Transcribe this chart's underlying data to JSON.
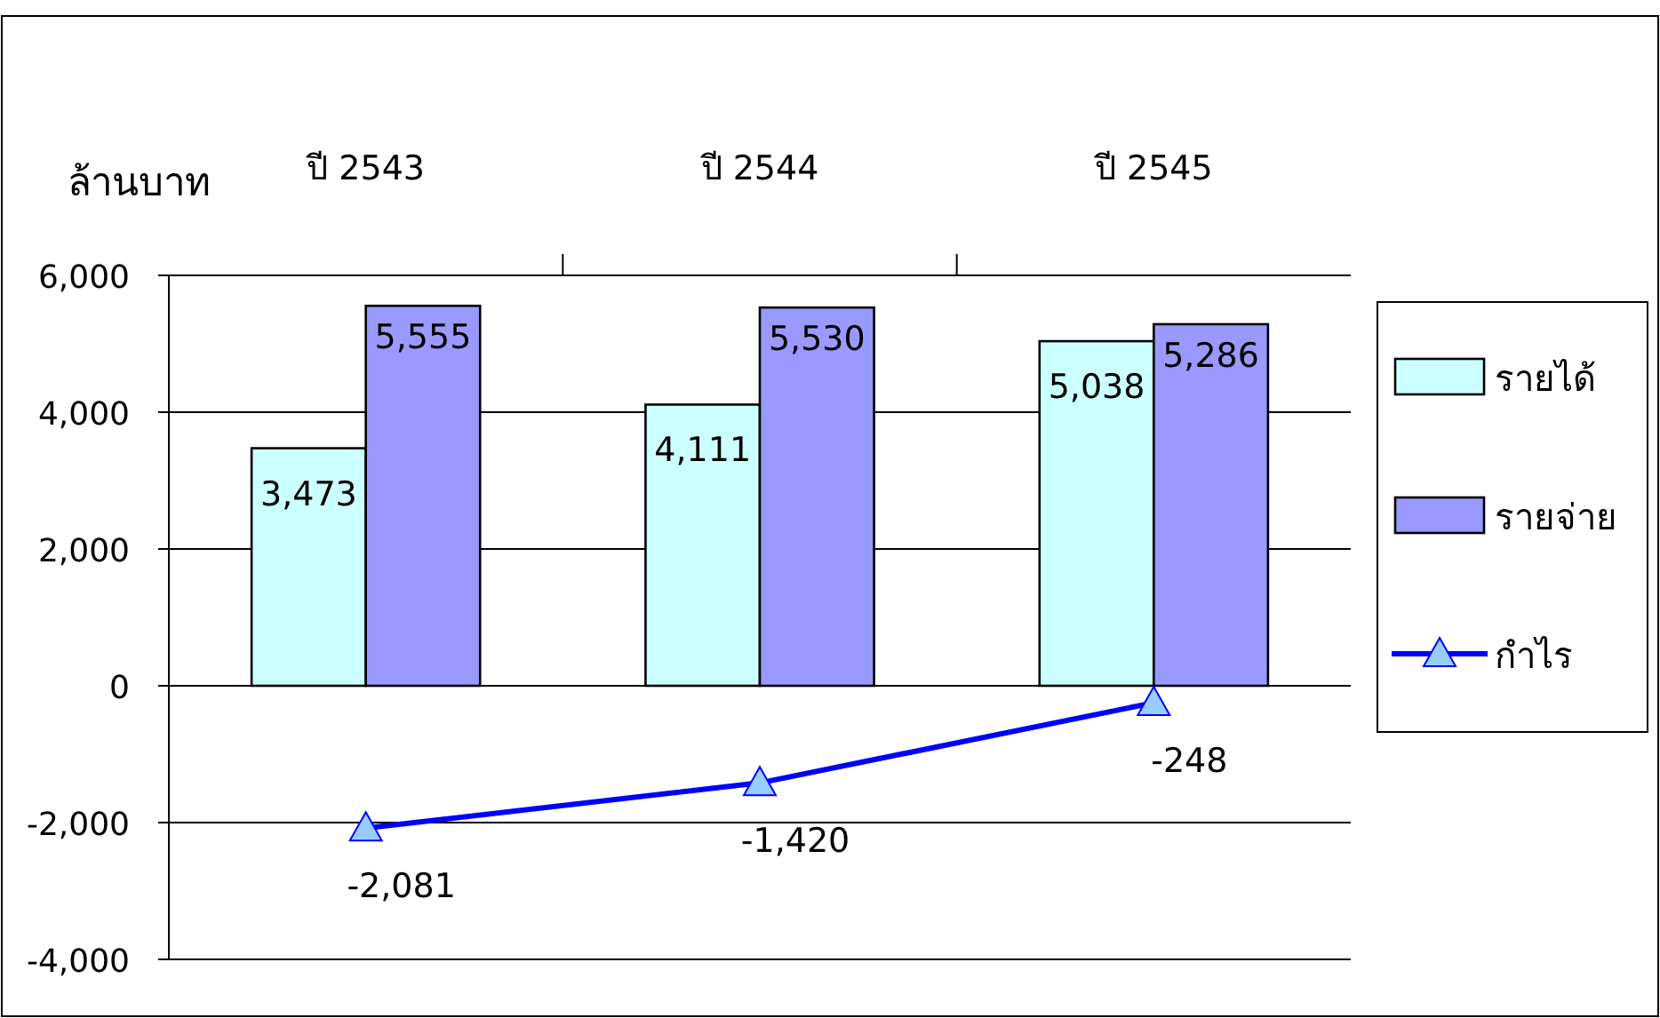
{
  "chart_data": {
    "type": "bar",
    "ylabel": "ล้านบาท",
    "categories": [
      "ปี 2543",
      "ปี 2544",
      "ปี 2545"
    ],
    "ylim": [
      -4000,
      6000
    ],
    "yticks": [
      {
        "value": -4000,
        "label": "-4,000"
      },
      {
        "value": -2000,
        "label": "-2,000"
      },
      {
        "value": 0,
        "label": "0"
      },
      {
        "value": 2000,
        "label": "2,000"
      },
      {
        "value": 4000,
        "label": "4,000"
      },
      {
        "value": 6000,
        "label": "6,000"
      }
    ],
    "grid": "y",
    "legend": "right",
    "series": [
      {
        "name": "รายได้",
        "color": "#ccffff",
        "values": [
          3473,
          4111,
          5038
        ],
        "value_labels": [
          "3,473",
          "4,111",
          "5,038"
        ]
      },
      {
        "name": "รายจ่าย",
        "color": "#9999ff",
        "values": [
          5555,
          5530,
          5286
        ],
        "value_labels": [
          "5,555",
          "5,530",
          "5,286"
        ]
      },
      {
        "name": "กำไร",
        "type": "line",
        "color": "#0000ff",
        "marker": "triangle",
        "values": [
          -2081,
          -1420,
          -248
        ],
        "value_labels": [
          "-2,081",
          "-1,420",
          "-248"
        ]
      }
    ]
  }
}
